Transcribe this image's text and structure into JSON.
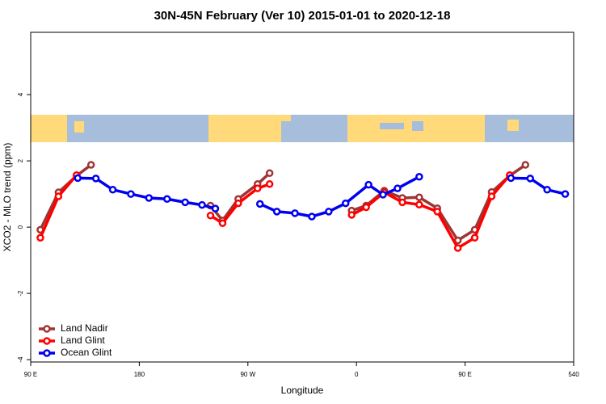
{
  "chart_data": {
    "type": "line",
    "title": "30N-45N February (Ver 10)   2015-01-01 to 2020-12-18",
    "x_label": "Longitude",
    "y_label": "XCO2 - MLO trend (ppm)",
    "xlim": [
      90,
      540
    ],
    "xticks": [
      {
        "value": 90,
        "label": "90 E"
      },
      180,
      {
        "value": 270,
        "label": "90 W"
      },
      {
        "value": 360,
        "label": "0"
      },
      {
        "value": 450,
        "label": "90 E"
      },
      540
    ],
    "ylim": [
      -4.07,
      5.88
    ],
    "yticks": [
      -4,
      -2,
      0,
      2,
      4
    ],
    "legend": "bottom-left",
    "series": [
      {
        "name": "Land Nadir",
        "color": "#a03434",
        "x": [
          98,
          113,
          128,
          140,
          null,
          239,
          249,
          262,
          278,
          288,
          null,
          356,
          368,
          383,
          398,
          412,
          427,
          444,
          458,
          472,
          487,
          500
        ],
        "values": [
          -0.08,
          1.05,
          1.55,
          1.88,
          null,
          0.65,
          0.2,
          0.85,
          1.3,
          1.63,
          null,
          0.5,
          0.65,
          1.1,
          0.88,
          0.9,
          0.57,
          -0.4,
          -0.08,
          1.06,
          1.55,
          1.88
        ]
      },
      {
        "name": "Land Glint",
        "color": "#ff0000",
        "x": [
          98,
          113,
          128,
          null,
          239,
          249,
          262,
          278,
          288,
          null,
          356,
          368,
          383,
          398,
          412,
          427,
          444,
          458,
          472,
          487
        ],
        "values": [
          -0.32,
          0.93,
          1.57,
          null,
          0.35,
          0.12,
          0.72,
          1.17,
          1.3,
          null,
          0.37,
          0.6,
          1.05,
          0.75,
          0.68,
          0.47,
          -0.63,
          -0.32,
          0.93,
          1.57
        ]
      },
      {
        "name": "Ocean Glint",
        "color": "#0000ee",
        "x": [
          129,
          144,
          158,
          173,
          188,
          203,
          218,
          232,
          243,
          null,
          280,
          294,
          309,
          323,
          337,
          351,
          370,
          382,
          394,
          412,
          null,
          488,
          504,
          518,
          533
        ],
        "values": [
          1.48,
          1.47,
          1.13,
          1.0,
          0.88,
          0.85,
          0.75,
          0.67,
          0.56,
          null,
          0.7,
          0.47,
          0.42,
          0.32,
          0.47,
          0.72,
          1.28,
          0.98,
          1.17,
          1.52,
          null,
          1.48,
          1.47,
          1.13,
          1.0
        ]
      }
    ]
  }
}
